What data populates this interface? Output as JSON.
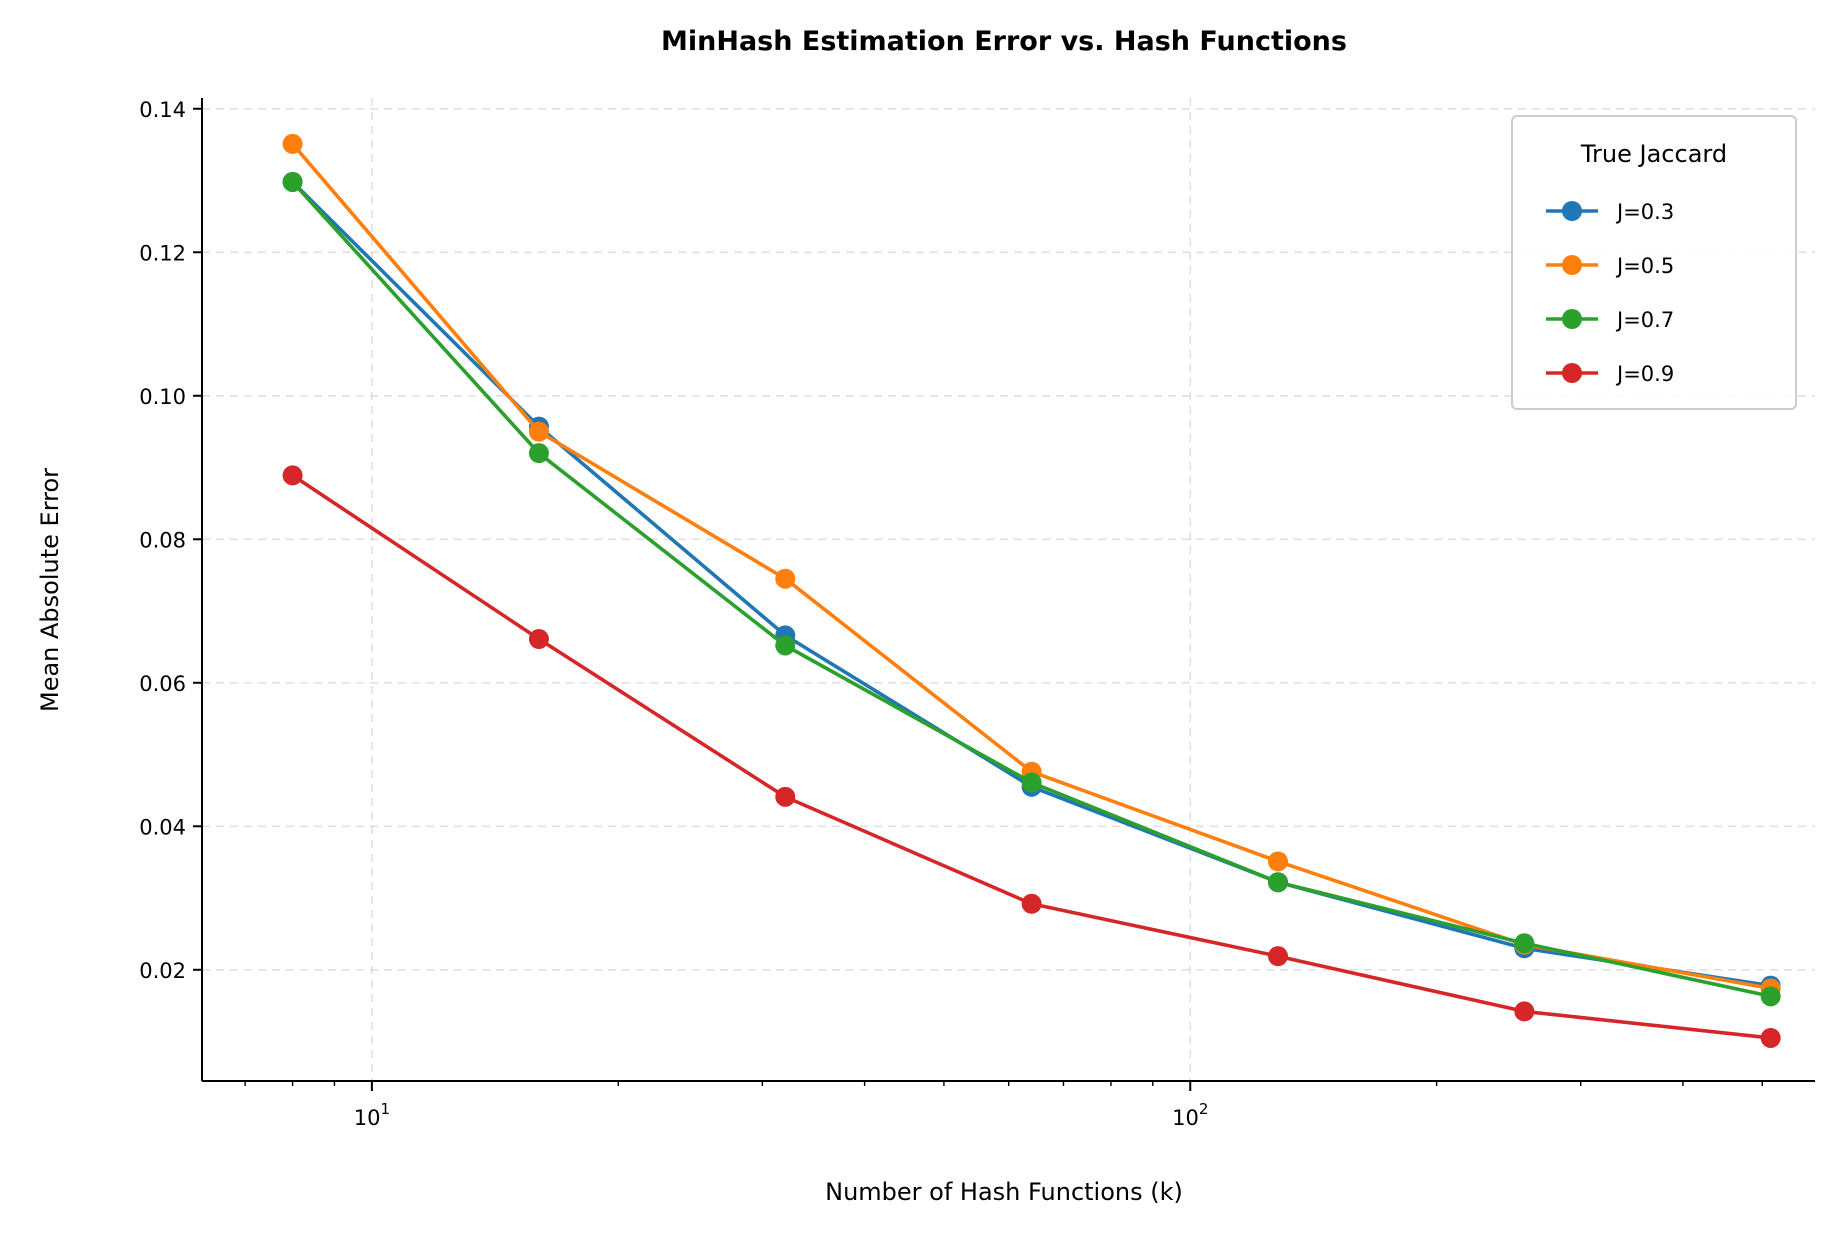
{
  "chart_data": {
    "type": "line",
    "title": "MinHash Estimation Error vs. Hash Functions",
    "xlabel": "Number of Hash Functions (k)",
    "ylabel": "Mean Absolute Error",
    "x_scale": "log",
    "xlim": [
      6.2,
      580
    ],
    "ylim": [
      0.0045,
      0.1415
    ],
    "x": [
      8,
      16,
      32,
      64,
      128,
      256,
      512
    ],
    "x_ticks": [
      {
        "value": 10,
        "base": "10",
        "exp": "1"
      },
      {
        "value": 100,
        "base": "10",
        "exp": "2"
      }
    ],
    "y_ticks": [
      {
        "value": 0.02,
        "label": "0.02"
      },
      {
        "value": 0.04,
        "label": "0.04"
      },
      {
        "value": 0.06,
        "label": "0.06"
      },
      {
        "value": 0.08,
        "label": "0.08"
      },
      {
        "value": 0.1,
        "label": "0.10"
      },
      {
        "value": 0.12,
        "label": "0.12"
      },
      {
        "value": 0.14,
        "label": "0.14"
      }
    ],
    "grid": true,
    "legend": {
      "title": "True Jaccard",
      "position": "top-right"
    },
    "series": [
      {
        "name": "J=0.3",
        "color": "#1f77b4",
        "values": [
          0.1298,
          0.0957,
          0.0666,
          0.0455,
          0.0322,
          0.023,
          0.0178
        ]
      },
      {
        "name": "J=0.5",
        "color": "#ff7f0e",
        "values": [
          0.1351,
          0.095,
          0.0745,
          0.0476,
          0.0351,
          0.0235,
          0.0174
        ]
      },
      {
        "name": "J=0.7",
        "color": "#2ca02c",
        "values": [
          0.1298,
          0.092,
          0.0652,
          0.0461,
          0.0322,
          0.0237,
          0.0163
        ]
      },
      {
        "name": "J=0.9",
        "color": "#d62728",
        "values": [
          0.0889,
          0.0661,
          0.0441,
          0.0292,
          0.0219,
          0.0142,
          0.0105
        ]
      }
    ]
  }
}
